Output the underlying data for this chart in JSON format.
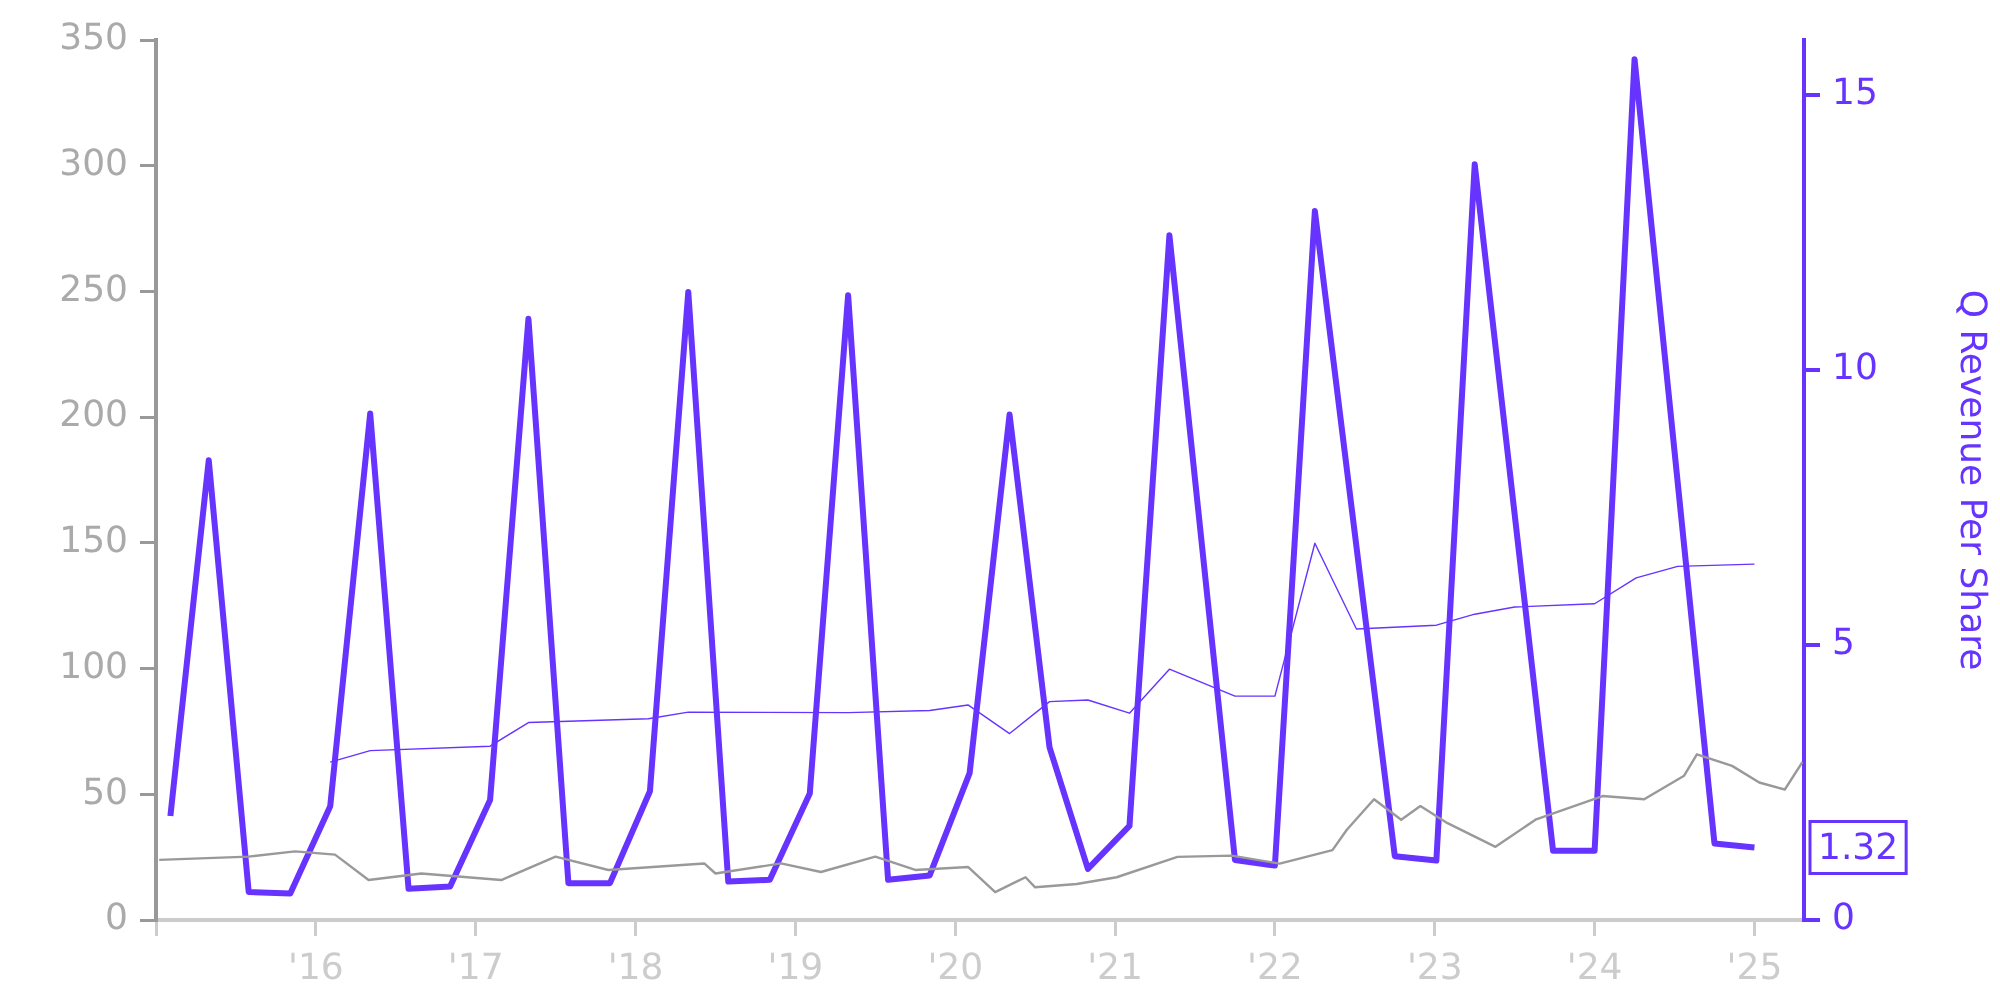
{
  "chart_data": {
    "type": "line",
    "y2label": "Q Revenue Per Share",
    "xlim": [
      2015,
      2025.31
    ],
    "xticks": [
      {
        "value": 2015,
        "label": null
      },
      {
        "value": 2016,
        "label": "'16"
      },
      {
        "value": 2017,
        "label": "'17"
      },
      {
        "value": 2018,
        "label": "'18"
      },
      {
        "value": 2019,
        "label": "'19"
      },
      {
        "value": 2020,
        "label": "'20"
      },
      {
        "value": 2021,
        "label": "'21"
      },
      {
        "value": 2022,
        "label": "'22"
      },
      {
        "value": 2023,
        "label": "'23"
      },
      {
        "value": 2024,
        "label": "'24"
      },
      {
        "value": 2025,
        "label": "'25"
      }
    ],
    "ylim": [
      0,
      350
    ],
    "yticks": [
      0,
      50,
      100,
      150,
      200,
      250,
      300,
      350
    ],
    "y2lim": [
      0,
      16
    ],
    "y2ticks": [
      0,
      5,
      10,
      15
    ],
    "grid": false,
    "legend": false,
    "marker": "none",
    "series": [
      {
        "color": "#999999",
        "x": [
          2015.02,
          2015.58,
          2015.87,
          2016.12,
          2016.33,
          2016.66,
          2017.16,
          2017.5,
          2017.83,
          2018.43,
          2018.5,
          2018.91,
          2019.16,
          2019.5,
          2019.75,
          2020.08,
          2020.25,
          2020.44,
          2020.5,
          2020.76,
          2021.01,
          2021.39,
          2021.73,
          2022.03,
          2022.36,
          2022.45,
          2022.62,
          2022.79,
          2022.91,
          2023.08,
          2023.38,
          2023.63,
          2024.05,
          2024.31,
          2024.56,
          2024.64,
          2024.86,
          2025.03,
          2025.19,
          2025.3
        ],
        "values": [
          23.9,
          25.2,
          27.3,
          26.0,
          15.9,
          18.5,
          15.9,
          25.2,
          19.9,
          22.5,
          18.5,
          22.5,
          19.1,
          25.2,
          19.9,
          21.1,
          11.1,
          17.0,
          13.0,
          14.3,
          17.0,
          25.1,
          25.6,
          22.4,
          27.8,
          35.9,
          48.0,
          39.9,
          45.3,
          38.5,
          29.1,
          39.9,
          49.3,
          48.0,
          57.4,
          65.9,
          61.3,
          54.7,
          51.9,
          62.8
        ]
      },
      {
        "color": "#6633ff",
        "axis": "y2",
        "x": [
          2016.09,
          2016.34,
          2017.09,
          2017.33,
          2018.08,
          2018.33,
          2019.33,
          2019.84,
          2020.08,
          2020.34,
          2020.59,
          2020.83,
          2021.09,
          2021.34,
          2021.75,
          2022.0,
          2022.25,
          2022.51,
          2023.01,
          2023.25,
          2023.5,
          2024.0,
          2024.26,
          2024.52,
          2025.0
        ],
        "values": [
          2.87,
          3.08,
          3.16,
          3.59,
          3.66,
          3.78,
          3.77,
          3.81,
          3.91,
          3.39,
          3.97,
          4.0,
          3.76,
          4.56,
          4.07,
          4.07,
          6.85,
          5.29,
          5.36,
          5.56,
          5.69,
          5.75,
          6.22,
          6.43,
          6.47
        ]
      },
      {
        "color": "#6633ff",
        "axis": "y2",
        "x": [
          2015.09,
          2015.33,
          2015.58,
          2015.84,
          2016.09,
          2016.34,
          2016.58,
          2016.84,
          2017.09,
          2017.33,
          2017.58,
          2017.84,
          2018.09,
          2018.33,
          2018.58,
          2018.84,
          2019.09,
          2019.33,
          2019.58,
          2019.84,
          2020.09,
          2020.34,
          2020.59,
          2020.83,
          2021.09,
          2021.34,
          2021.75,
          2022.0,
          2022.25,
          2022.75,
          2023.01,
          2023.25,
          2023.74,
          2024.0,
          2024.25,
          2024.75,
          2025.0
        ],
        "values": [
          1.89,
          8.36,
          0.51,
          0.48,
          2.07,
          9.21,
          0.57,
          0.61,
          2.18,
          10.93,
          0.67,
          0.67,
          2.34,
          11.42,
          0.7,
          0.73,
          2.3,
          11.36,
          0.73,
          0.81,
          2.67,
          9.19,
          3.14,
          0.93,
          1.71,
          12.45,
          1.09,
          0.99,
          12.89,
          1.16,
          1.08,
          13.74,
          1.26,
          1.26,
          15.65,
          1.39,
          1.32
        ],
        "value_labels": [
          null,
          null,
          null,
          null,
          null,
          null,
          null,
          null,
          null,
          null,
          null,
          null,
          null,
          null,
          null,
          null,
          null,
          null,
          null,
          null,
          null,
          null,
          null,
          null,
          null,
          null,
          null,
          null,
          null,
          null,
          null,
          null,
          null,
          null,
          null,
          null,
          "1.32"
        ]
      }
    ]
  }
}
